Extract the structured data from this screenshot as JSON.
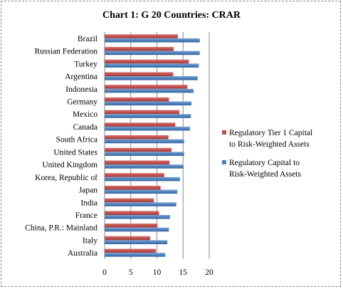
{
  "chart_data": {
    "type": "bar",
    "orientation": "horizontal",
    "title": "Chart 1: G 20 Countries: CRAR",
    "categories": [
      "Brazil",
      "Russian Federation",
      "Turkey",
      "Argentina",
      "Indonesia",
      "Germany",
      "Mexico",
      "Canada",
      "South Africa",
      "United States",
      "United Kingdom",
      "Korea, Republic of",
      "Japan",
      "India",
      "France",
      "China, P.R.: Mainland",
      "Italy",
      "Australia"
    ],
    "series": [
      {
        "name": "Regulatory Tier 1 Capital to Risk-Weighted Assets",
        "color": "#c0504d",
        "values": [
          14.0,
          13.2,
          16.1,
          13.1,
          15.8,
          12.3,
          14.3,
          13.5,
          12.2,
          12.8,
          12.4,
          11.4,
          10.7,
          9.4,
          10.4,
          10.1,
          8.7,
          9.8
        ]
      },
      {
        "name": "Regulatory Capital to Risk-Weighted Assets",
        "color": "#4f81bd",
        "values": [
          18.2,
          18.2,
          18.0,
          17.8,
          17.0,
          16.6,
          16.5,
          16.3,
          15.2,
          15.2,
          15.1,
          14.4,
          13.9,
          13.7,
          12.5,
          12.3,
          12.0,
          11.6
        ]
      }
    ],
    "x_ticks": [
      "0",
      "5",
      "10",
      "15",
      "20"
    ],
    "xlim": [
      0,
      20
    ],
    "xlabel": "",
    "ylabel": "",
    "grid": "vertical",
    "legend_position": "right"
  }
}
